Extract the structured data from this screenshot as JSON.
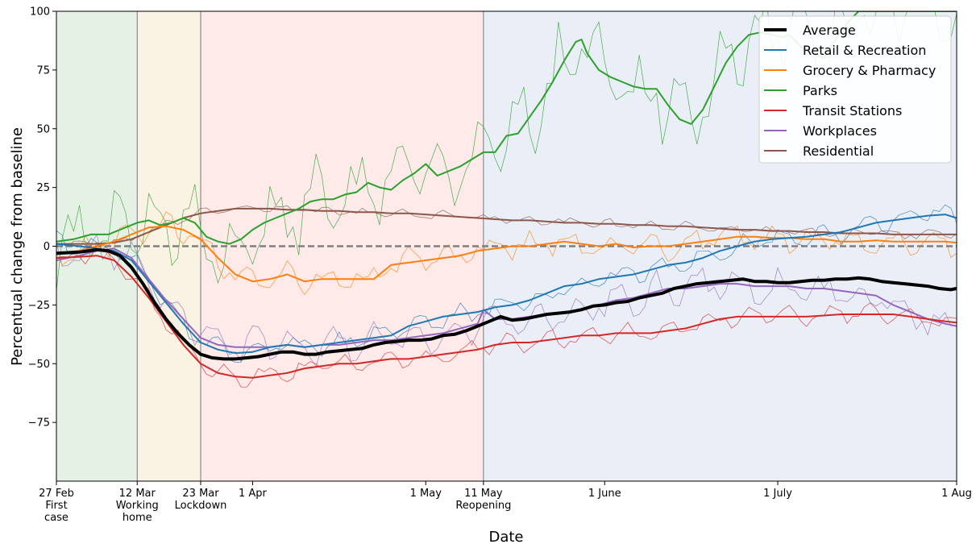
{
  "chart_data": {
    "type": "line",
    "title": "",
    "xlabel": "Date",
    "ylabel": "Percentual change from baseline",
    "xlim": [
      0,
      156
    ],
    "ylim": [
      -100,
      100
    ],
    "y_ticks": [
      100,
      75,
      50,
      25,
      0,
      -25,
      -50,
      -75
    ],
    "y_tick_labels": [
      "100",
      "75",
      "50",
      "25",
      "0",
      "−25",
      "−50",
      "−75"
    ],
    "x_ticks": [
      {
        "day": 0,
        "lines": [
          "27 Feb",
          "First",
          "case"
        ]
      },
      {
        "day": 14,
        "lines": [
          "12 Mar",
          "Working",
          "home"
        ]
      },
      {
        "day": 25,
        "lines": [
          "23 Mar",
          "Lockdown"
        ]
      },
      {
        "day": 34,
        "lines": [
          "1 Apr"
        ]
      },
      {
        "day": 64,
        "lines": [
          "1 May"
        ]
      },
      {
        "day": 74,
        "lines": [
          "11 May",
          "Reopening"
        ]
      },
      {
        "day": 95,
        "lines": [
          "1 June"
        ]
      },
      {
        "day": 125,
        "lines": [
          "1 July"
        ]
      },
      {
        "day": 156,
        "lines": [
          "1 Aug"
        ]
      }
    ],
    "phases": [
      {
        "start": 0,
        "end": 14,
        "color": "#e6f1e6"
      },
      {
        "start": 14,
        "end": 25,
        "color": "#faf2e3"
      },
      {
        "start": 25,
        "end": 74,
        "color": "#fdeae9"
      },
      {
        "start": 74,
        "end": 156,
        "color": "#eaeff7"
      }
    ],
    "phase_boundaries": [
      14,
      25,
      74
    ],
    "baseline": 0,
    "grid": false,
    "legend_position": "top-right",
    "series": [
      {
        "name": "Average",
        "color": "#000000",
        "x": [
          0,
          4,
          7,
          9,
          11,
          13,
          15,
          17,
          19,
          21,
          23,
          25,
          27,
          29,
          31,
          33,
          35,
          37,
          39,
          41,
          43,
          45,
          47,
          49,
          51,
          53,
          55,
          57,
          59,
          61,
          63,
          65,
          67,
          69,
          71,
          73,
          75,
          77,
          79,
          81,
          83,
          85,
          87,
          89,
          91,
          93,
          95,
          97,
          99,
          101,
          103,
          105,
          107,
          109,
          111,
          113,
          115,
          117,
          119,
          121,
          123,
          125,
          127,
          129,
          131,
          133,
          135,
          137,
          139,
          141,
          143,
          145,
          147,
          149,
          151,
          153,
          155,
          156
        ],
        "y": [
          -3,
          -2.5,
          -1.5,
          -2,
          -4,
          -9,
          -16,
          -24,
          -31,
          -37,
          -42,
          -46,
          -47.5,
          -48,
          -48,
          -47.5,
          -47,
          -46,
          -45,
          -45,
          -46,
          -46,
          -45,
          -44.5,
          -44,
          -43.5,
          -42,
          -41,
          -40.5,
          -40,
          -40,
          -39.5,
          -38,
          -37.5,
          -36,
          -34,
          -32,
          -30,
          -31.5,
          -31,
          -30,
          -29,
          -28.5,
          -28,
          -27,
          -25.5,
          -25,
          -24,
          -23.5,
          -22,
          -21,
          -20,
          -18,
          -17,
          -16,
          -15.5,
          -15,
          -14.5,
          -14,
          -15,
          -15,
          -15.5,
          -15.5,
          -15,
          -14.5,
          -14.5,
          -14,
          -14,
          -13.5,
          -14,
          -15,
          -15.5,
          -16,
          -16.5,
          -17,
          -18,
          -18.5,
          -18
        ]
      },
      {
        "name": "Retail & Recreation",
        "color": "#1f77b4",
        "x": [
          0,
          4,
          7,
          10,
          13,
          16,
          19,
          22,
          25,
          28,
          31,
          34,
          37,
          40,
          43,
          46,
          49,
          52,
          55,
          58,
          61,
          64,
          67,
          70,
          73,
          76,
          79,
          82,
          85,
          88,
          91,
          94,
          97,
          100,
          103,
          106,
          109,
          112,
          115,
          118,
          121,
          124,
          127,
          130,
          133,
          136,
          139,
          142,
          145,
          148,
          151,
          154,
          156
        ],
        "y": [
          1,
          0,
          -1,
          -2,
          -6,
          -15,
          -24,
          -33,
          -41,
          -44,
          -45.5,
          -45,
          -43,
          -42,
          -43,
          -42,
          -41,
          -40,
          -39,
          -38,
          -34,
          -32,
          -30,
          -29,
          -28,
          -26,
          -25,
          -23,
          -20,
          -17,
          -16,
          -14,
          -13,
          -12,
          -10,
          -8,
          -7,
          -5,
          -2,
          0,
          2,
          3,
          3.5,
          4,
          5,
          6,
          8,
          10,
          11,
          12,
          13,
          13.5,
          12
        ]
      },
      {
        "name": "Grocery & Pharmacy",
        "color": "#ff7f0e",
        "x": [
          0,
          4,
          7,
          10,
          13,
          16,
          19,
          22,
          25,
          28,
          31,
          34,
          37,
          40,
          43,
          46,
          49,
          52,
          55,
          58,
          61,
          64,
          67,
          70,
          73,
          76,
          79,
          82,
          85,
          88,
          91,
          94,
          97,
          100,
          103,
          106,
          109,
          112,
          115,
          118,
          121,
          124,
          127,
          130,
          133,
          136,
          139,
          142,
          145,
          148,
          151,
          154,
          156
        ],
        "y": [
          -3,
          -2,
          0,
          2,
          5,
          8,
          8.5,
          7,
          3,
          -5,
          -12,
          -15,
          -14,
          -12,
          -15,
          -14,
          -14,
          -14,
          -14,
          -8,
          -7,
          -6,
          -5,
          -4,
          -2,
          -1,
          0,
          0,
          1,
          2,
          1,
          0,
          1,
          -0.5,
          0,
          0,
          1,
          2,
          3,
          4,
          4,
          3.5,
          3.5,
          3,
          3,
          2,
          2,
          2.5,
          2,
          2,
          2,
          2,
          1.5
        ]
      },
      {
        "name": "Parks",
        "color": "#2ca02c",
        "x": [
          0,
          3,
          6,
          9,
          12,
          14,
          16,
          18,
          20,
          22,
          24,
          26,
          28,
          30,
          32,
          34,
          36,
          38,
          40,
          42,
          44,
          46,
          48,
          50,
          52,
          54,
          56,
          58,
          60,
          62,
          64,
          66,
          68,
          70,
          72,
          74,
          76,
          78,
          80,
          82,
          84,
          86,
          88,
          90,
          91,
          92,
          94,
          96,
          98,
          100,
          102,
          104,
          106,
          108,
          110,
          112,
          114,
          116,
          118,
          120,
          122,
          124,
          126,
          127,
          129,
          131,
          133,
          135,
          137,
          139,
          141,
          143,
          145,
          147,
          149,
          151,
          153,
          155,
          156
        ],
        "y": [
          2,
          3,
          5,
          5,
          8,
          10,
          11,
          9,
          10,
          12,
          10,
          4,
          2,
          1,
          3,
          7,
          10,
          12,
          14,
          16,
          19,
          20,
          20,
          22,
          23,
          27,
          25,
          24,
          28,
          31,
          35,
          30,
          32,
          34,
          37,
          40,
          40,
          47,
          48,
          55,
          62,
          70,
          79,
          87,
          88,
          82,
          75,
          72,
          70,
          68,
          67,
          67,
          60,
          54,
          52,
          58,
          68,
          78,
          85,
          90,
          91,
          90,
          89,
          90,
          85,
          82,
          80,
          88,
          95,
          100,
          100,
          100,
          100,
          100,
          100,
          100,
          100,
          100,
          100
        ]
      },
      {
        "name": "Transit Stations",
        "color": "#d62728",
        "x": [
          0,
          4,
          7,
          10,
          13,
          16,
          19,
          22,
          25,
          28,
          31,
          34,
          37,
          40,
          43,
          46,
          49,
          52,
          55,
          58,
          61,
          64,
          67,
          70,
          73,
          76,
          79,
          82,
          85,
          88,
          91,
          94,
          97,
          100,
          103,
          106,
          109,
          112,
          115,
          118,
          121,
          124,
          127,
          130,
          133,
          136,
          139,
          142,
          145,
          148,
          151,
          154,
          156
        ],
        "y": [
          -5,
          -4.5,
          -4,
          -6,
          -13,
          -22,
          -32,
          -42,
          -50,
          -54,
          -55.5,
          -56,
          -55,
          -54,
          -52,
          -51,
          -50,
          -50,
          -49,
          -48,
          -48,
          -47,
          -46,
          -45,
          -44,
          -42,
          -41,
          -41,
          -40,
          -39,
          -38,
          -38,
          -37,
          -37,
          -37,
          -36,
          -35,
          -33,
          -31,
          -30,
          -30,
          -30,
          -30,
          -30,
          -29.5,
          -29,
          -29,
          -29,
          -29,
          -30,
          -31,
          -32,
          -32.5
        ]
      },
      {
        "name": "Workplaces",
        "color": "#9467bd",
        "x": [
          0,
          4,
          7,
          10,
          13,
          16,
          19,
          22,
          25,
          28,
          31,
          34,
          37,
          40,
          43,
          46,
          49,
          52,
          55,
          58,
          61,
          64,
          67,
          70,
          73,
          74,
          76,
          79,
          82,
          85,
          88,
          91,
          94,
          97,
          100,
          103,
          106,
          109,
          112,
          115,
          118,
          121,
          124,
          127,
          130,
          133,
          136,
          139,
          142,
          145,
          148,
          151,
          154,
          156
        ],
        "y": [
          -6,
          -4,
          -2,
          -1,
          -5,
          -14,
          -23,
          -31,
          -39,
          -42,
          -43,
          -43,
          -43,
          -42,
          -43,
          -42,
          -42,
          -41,
          -40,
          -40,
          -39,
          -38,
          -37,
          -35,
          -33,
          -27,
          -31,
          -31,
          -30,
          -29,
          -28,
          -27,
          -25,
          -23,
          -22,
          -20,
          -18,
          -18,
          -17,
          -16,
          -16,
          -17,
          -17,
          -17,
          -18,
          -18,
          -19,
          -20,
          -21,
          -25,
          -28,
          -31,
          -33,
          -34
        ]
      },
      {
        "name": "Residential",
        "color": "#8c564b",
        "x": [
          0,
          4,
          7,
          10,
          13,
          16,
          19,
          22,
          25,
          28,
          31,
          34,
          37,
          40,
          43,
          46,
          49,
          52,
          55,
          58,
          61,
          64,
          67,
          70,
          73,
          76,
          79,
          82,
          85,
          88,
          91,
          94,
          97,
          100,
          103,
          106,
          109,
          112,
          115,
          118,
          121,
          124,
          127,
          130,
          133,
          136,
          139,
          142,
          145,
          148,
          151,
          154,
          156
        ],
        "y": [
          1,
          1,
          1,
          1.5,
          3,
          6,
          9,
          12,
          14,
          15,
          16,
          16,
          16,
          15.5,
          15.5,
          15,
          15,
          14.5,
          14.5,
          14,
          14,
          13.5,
          13,
          12.5,
          12,
          11.5,
          11,
          11,
          10.5,
          10,
          10,
          9.5,
          9.5,
          9,
          9,
          8.5,
          8.5,
          8,
          7.5,
          7,
          7,
          6.5,
          6.5,
          6,
          6,
          5.5,
          5.5,
          5.5,
          5,
          5,
          5,
          5,
          5
        ]
      }
    ]
  }
}
